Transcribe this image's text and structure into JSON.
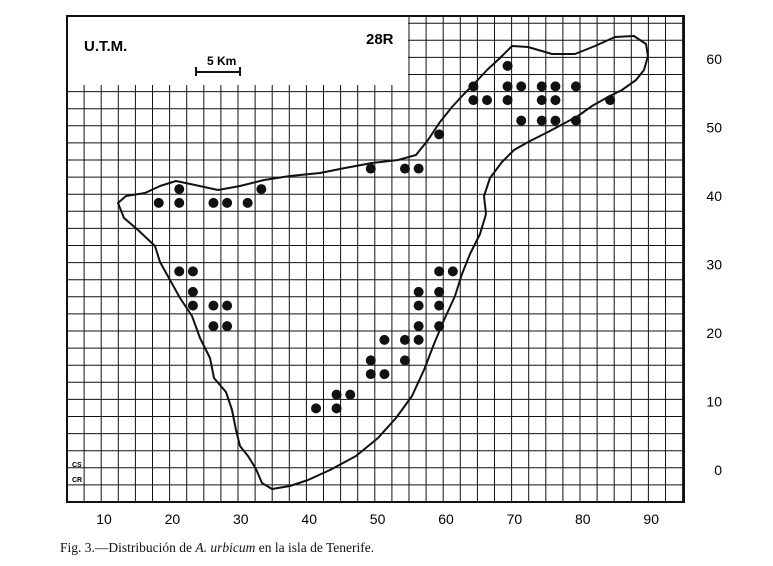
{
  "map": {
    "utm_label": "U.T.M.",
    "zone_label": "28R",
    "scale_label": "5 Km",
    "x_ticks": [
      "10",
      "20",
      "30",
      "40",
      "50",
      "60",
      "70",
      "80",
      "90"
    ],
    "y_ticks": [
      "0",
      "10",
      "20",
      "30",
      "40",
      "50",
      "60"
    ],
    "margin_labels": [
      "CS",
      "CR"
    ],
    "colors": {
      "ink": "#111111",
      "paper": "#ffffff"
    }
  },
  "records_utm": [
    [
      21,
      41
    ],
    [
      18,
      39
    ],
    [
      21,
      39
    ],
    [
      26,
      39
    ],
    [
      28,
      39
    ],
    [
      31,
      39
    ],
    [
      33,
      41
    ],
    [
      21,
      29
    ],
    [
      23,
      29
    ],
    [
      23,
      26
    ],
    [
      23,
      24
    ],
    [
      26,
      24
    ],
    [
      28,
      24
    ],
    [
      26,
      21
    ],
    [
      28,
      21
    ],
    [
      49,
      44
    ],
    [
      54,
      44
    ],
    [
      56,
      44
    ],
    [
      59,
      49
    ],
    [
      64,
      56
    ],
    [
      64,
      54
    ],
    [
      66,
      54
    ],
    [
      69,
      54
    ],
    [
      69,
      56
    ],
    [
      74,
      56
    ],
    [
      76,
      56
    ],
    [
      79,
      56
    ],
    [
      71,
      51
    ],
    [
      74,
      51
    ],
    [
      76,
      51
    ],
    [
      79,
      51
    ],
    [
      76,
      54
    ],
    [
      84,
      54
    ],
    [
      69,
      59
    ],
    [
      71,
      56
    ],
    [
      74,
      54
    ],
    [
      59,
      29
    ],
    [
      61,
      29
    ],
    [
      56,
      26
    ],
    [
      59,
      26
    ],
    [
      56,
      24
    ],
    [
      59,
      24
    ],
    [
      56,
      21
    ],
    [
      59,
      21
    ],
    [
      54,
      19
    ],
    [
      56,
      19
    ],
    [
      51,
      19
    ],
    [
      49,
      16
    ],
    [
      54,
      16
    ],
    [
      49,
      14
    ],
    [
      51,
      14
    ],
    [
      44,
      11
    ],
    [
      46,
      11
    ],
    [
      41,
      9
    ],
    [
      44,
      9
    ]
  ],
  "caption": {
    "prefix": "Fig. 3.—Distribución de ",
    "species": "A. urbicum",
    "suffix": " en la isla de Tenerife."
  }
}
